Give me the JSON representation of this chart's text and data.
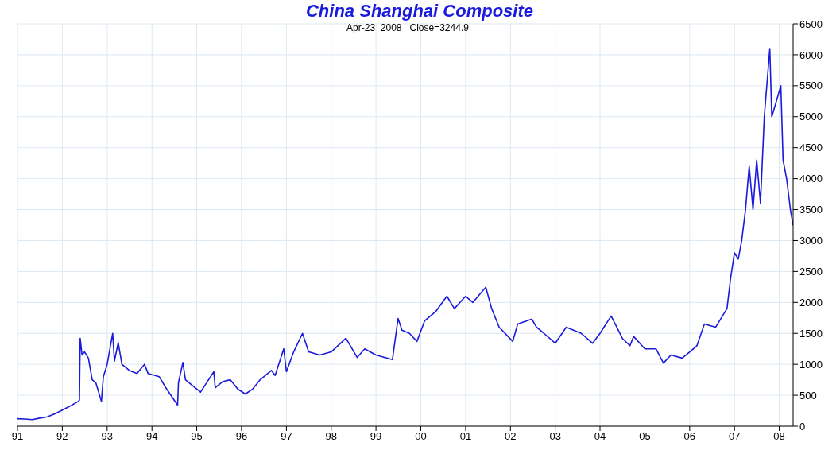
{
  "chart_data": {
    "type": "line",
    "title": "China Shanghai Composite",
    "subtitle": "Apr-23  2008   Close=3244.9",
    "x": [
      "1991-01-01",
      "1991-03",
      "1991-05",
      "1991-07",
      "1991-09",
      "1991-11",
      "1992-01",
      "1992-03",
      "1992-05-10",
      "1992-05-20",
      "1992-05-26",
      "1992-06-10",
      "1992-07",
      "1992-08",
      "1992-09",
      "1992-10",
      "1992-11-15",
      "1992-12",
      "1993-01",
      "1993-02-15",
      "1993-03",
      "1993-04",
      "1993-05",
      "1993-07",
      "1993-09",
      "1993-11",
      "1993-12",
      "1994-03",
      "1994-05",
      "1994-07-29",
      "1994-08-05",
      "1994-09-10",
      "1994-10",
      "1994-12",
      "1995-02",
      "1995-05-20",
      "1995-06",
      "1995-08",
      "1995-10",
      "1995-12",
      "1996-02",
      "1996-04",
      "1996-06",
      "1996-09",
      "1996-10",
      "1996-12-10",
      "1997-01",
      "1997-03",
      "1997-05-12",
      "1997-07",
      "1997-10",
      "1998-01",
      "1998-05",
      "1998-08",
      "1998-10",
      "1999-01",
      "1999-05-15",
      "1999-06-30",
      "1999-08",
      "1999-10",
      "1999-12",
      "2000-02",
      "2000-05",
      "2000-08",
      "2000-10",
      "2001-01",
      "2001-03",
      "2001-06-14",
      "2001-08",
      "2001-10",
      "2002-01-20",
      "2002-03",
      "2002-06-25",
      "2002-08",
      "2002-10",
      "2003-01",
      "2003-04",
      "2003-08",
      "2003-11",
      "2004-01",
      "2004-04",
      "2004-07",
      "2004-09",
      "2004-10",
      "2005-01",
      "2005-04",
      "2005-06",
      "2005-08",
      "2005-11",
      "2006-01",
      "2006-03",
      "2006-05",
      "2006-08",
      "2006-11",
      "2006-12",
      "2007-01",
      "2007-02",
      "2007-03",
      "2007-04",
      "2007-05",
      "2007-06",
      "2007-07",
      "2007-08",
      "2007-09",
      "2007-10-16",
      "2007-11",
      "2007-12",
      "2008-01-14",
      "2008-02",
      "2008-03",
      "2008-04",
      "2008-04-23"
    ],
    "series": [
      {
        "color": "#1a1adc",
        "values": [
          120,
          115,
          105,
          130,
          150,
          200,
          260,
          320,
          400,
          420,
          1420,
          1150,
          1200,
          1100,
          750,
          700,
          400,
          800,
          1000,
          1500,
          1050,
          1350,
          1000,
          900,
          850,
          1000,
          850,
          800,
          600,
          340,
          700,
          1030,
          750,
          650,
          550,
          880,
          620,
          720,
          750,
          600,
          520,
          600,
          750,
          900,
          820,
          1250,
          880,
          1200,
          1500,
          1200,
          1150,
          1200,
          1420,
          1110,
          1250,
          1150,
          1075,
          1740,
          1550,
          1500,
          1370,
          1700,
          1850,
          2100,
          1900,
          2100,
          2000,
          2245,
          1900,
          1600,
          1370,
          1650,
          1730,
          1600,
          1500,
          1340,
          1600,
          1500,
          1340,
          1500,
          1780,
          1420,
          1300,
          1450,
          1250,
          1250,
          1020,
          1150,
          1100,
          1200,
          1300,
          1650,
          1600,
          1900,
          2400,
          2800,
          2700,
          3000,
          3500,
          4200,
          3500,
          4300,
          3600,
          5000,
          6100,
          5000,
          5200,
          5500,
          4300,
          4000,
          3500,
          3245
        ]
      }
    ],
    "xlim": [
      "1991-01-01",
      "2008-04-23"
    ],
    "xticks": [
      {
        "value": "1991",
        "label": "91"
      },
      {
        "value": "1992",
        "label": "92"
      },
      {
        "value": "1993",
        "label": "93"
      },
      {
        "value": "1994",
        "label": "94"
      },
      {
        "value": "1995",
        "label": "95"
      },
      {
        "value": "1996",
        "label": "96"
      },
      {
        "value": "1997",
        "label": "97"
      },
      {
        "value": "1998",
        "label": "98"
      },
      {
        "value": "1999",
        "label": "99"
      },
      {
        "value": "2000",
        "label": "00"
      },
      {
        "value": "2001",
        "label": "01"
      },
      {
        "value": "2002",
        "label": "02"
      },
      {
        "value": "2003",
        "label": "03"
      },
      {
        "value": "2004",
        "label": "04"
      },
      {
        "value": "2005",
        "label": "05"
      },
      {
        "value": "2006",
        "label": "06"
      },
      {
        "value": "2007",
        "label": "07"
      },
      {
        "value": "2008",
        "label": "08"
      }
    ],
    "ylim": [
      0,
      6500
    ],
    "yticks": [
      0,
      500,
      1000,
      1500,
      2000,
      2500,
      3000,
      3500,
      4000,
      4500,
      5000,
      5500,
      6000,
      6500
    ],
    "grid": true,
    "marker": "none",
    "line_style": "solid",
    "legend": false
  }
}
